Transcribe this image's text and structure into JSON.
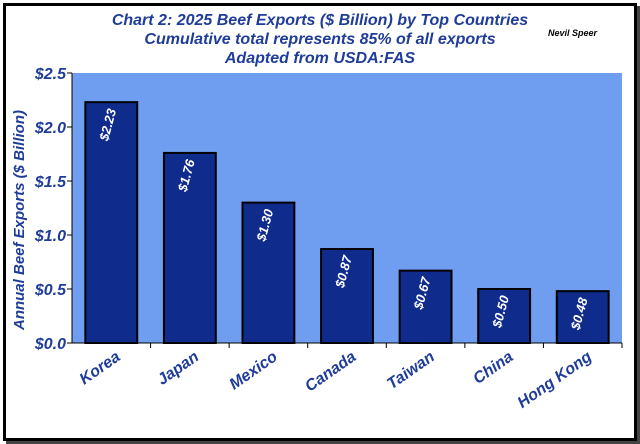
{
  "chart_data": {
    "type": "bar",
    "title_lines": [
      "Chart 2:  2025 Beef Exports ($ Billion) by Top Countries",
      "Cumulative total represents 85% of all exports",
      "Adapted from USDA:FAS"
    ],
    "author": "Nevil Speer",
    "ylabel": "Annual Beef Exports ($ Billion)",
    "xlabel": "",
    "categories": [
      "Korea",
      "Japan",
      "Mexico",
      "Canada",
      "Taiwan",
      "China",
      "Hong Kong"
    ],
    "values": [
      2.23,
      1.76,
      1.3,
      0.87,
      0.67,
      0.5,
      0.48
    ],
    "data_labels": [
      "$2.23",
      "$1.76",
      "$1.30",
      "$0.87",
      "$0.67",
      "$0.50",
      "$0.48"
    ],
    "ylim": [
      0,
      2.5
    ],
    "yticks": [
      0,
      0.5,
      1.0,
      1.5,
      2.0,
      2.5
    ],
    "ytick_labels": [
      "$0.0",
      "$0.5",
      "$1.0",
      "$1.5",
      "$2.0",
      "$2.5"
    ],
    "grid": false,
    "legend": "none",
    "colors": {
      "plot_background": "#6f9ef0",
      "bar_fill": "#0f2b8c",
      "bar_stroke": "#000000",
      "text": "#1f3c99",
      "data_label": "#ffffff"
    }
  }
}
